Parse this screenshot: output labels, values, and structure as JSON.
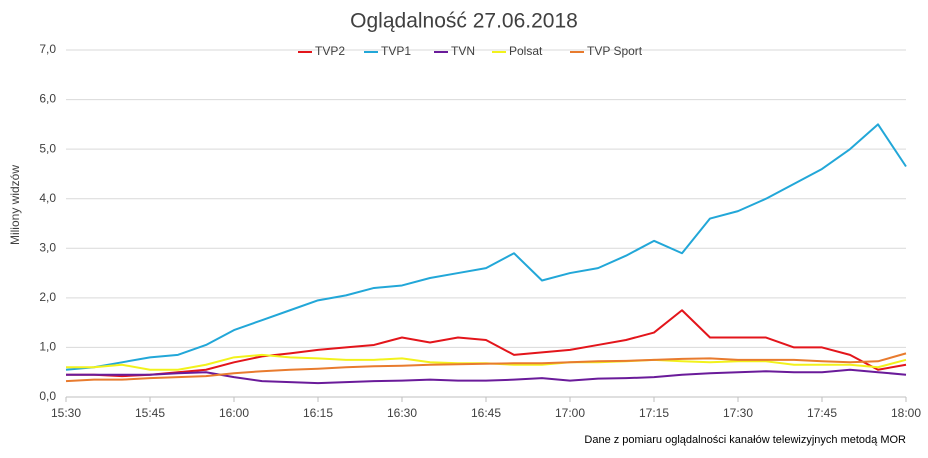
{
  "chart_data": {
    "type": "line",
    "title": "Oglądalność 27.06.2018",
    "y_label": "Miliony widzów",
    "note": "Dane z pomiaru oglądalności kanałów telewizyjnych metodą MOR",
    "categories": [
      "15:30",
      null,
      null,
      "15:45",
      null,
      null,
      "16:00",
      null,
      null,
      "16:15",
      null,
      null,
      "16:30",
      null,
      null,
      "16:45",
      null,
      null,
      "17:00",
      null,
      null,
      "17:15",
      null,
      null,
      "17:30",
      null,
      null,
      "17:45",
      null,
      null,
      "18:00"
    ],
    "series": [
      {
        "name": "TVP2",
        "color": "#e3151b",
        "values": [
          0.45,
          0.45,
          0.42,
          0.45,
          0.5,
          0.55,
          0.7,
          0.82,
          0.88,
          0.95,
          1.0,
          1.05,
          1.2,
          1.1,
          1.2,
          1.15,
          0.85,
          0.9,
          0.95,
          1.05,
          1.15,
          1.3,
          1.75,
          1.2,
          1.2,
          1.2,
          1.0,
          1.0,
          0.85,
          0.55,
          0.65
        ]
      },
      {
        "name": "TVP1",
        "color": "#22a7d8",
        "values": [
          0.55,
          0.6,
          0.7,
          0.8,
          0.85,
          1.05,
          1.35,
          1.55,
          1.75,
          1.95,
          2.05,
          2.2,
          2.25,
          2.4,
          2.5,
          2.6,
          2.9,
          2.35,
          2.5,
          2.6,
          2.85,
          3.15,
          2.9,
          3.6,
          3.75,
          4.0,
          4.3,
          4.6,
          5.0,
          5.5,
          4.65
        ]
      },
      {
        "name": "TVN",
        "color": "#6a1b9a",
        "values": [
          0.45,
          0.45,
          0.45,
          0.45,
          0.48,
          0.5,
          0.4,
          0.32,
          0.3,
          0.28,
          0.3,
          0.32,
          0.33,
          0.35,
          0.33,
          0.33,
          0.35,
          0.38,
          0.33,
          0.37,
          0.38,
          0.4,
          0.45,
          0.48,
          0.5,
          0.52,
          0.5,
          0.5,
          0.55,
          0.5,
          0.45
        ]
      },
      {
        "name": "Polsat",
        "color": "#f2f21c",
        "values": [
          0.6,
          0.6,
          0.65,
          0.55,
          0.55,
          0.65,
          0.8,
          0.85,
          0.8,
          0.78,
          0.75,
          0.75,
          0.78,
          0.7,
          0.68,
          0.68,
          0.65,
          0.65,
          0.7,
          0.7,
          0.72,
          0.75,
          0.72,
          0.7,
          0.72,
          0.72,
          0.65,
          0.65,
          0.65,
          0.6,
          0.75
        ]
      },
      {
        "name": "TVP Sport",
        "color": "#e87b2e",
        "values": [
          0.32,
          0.35,
          0.35,
          0.38,
          0.4,
          0.42,
          0.48,
          0.52,
          0.55,
          0.57,
          0.6,
          0.62,
          0.63,
          0.65,
          0.66,
          0.67,
          0.68,
          0.68,
          0.7,
          0.72,
          0.73,
          0.75,
          0.77,
          0.78,
          0.75,
          0.75,
          0.75,
          0.72,
          0.7,
          0.72,
          0.88
        ]
      }
    ],
    "ylim": [
      0,
      7
    ],
    "yticks": [
      {
        "value": 0,
        "label": "0,0"
      },
      {
        "value": 1,
        "label": "1,0"
      },
      {
        "value": 2,
        "label": "2,0"
      },
      {
        "value": 3,
        "label": "3,0"
      },
      {
        "value": 4,
        "label": "4,0"
      },
      {
        "value": 5,
        "label": "5,0"
      },
      {
        "value": 6,
        "label": "6,0"
      },
      {
        "value": 7,
        "label": "7,0"
      }
    ],
    "grid": true,
    "legend": "top"
  }
}
